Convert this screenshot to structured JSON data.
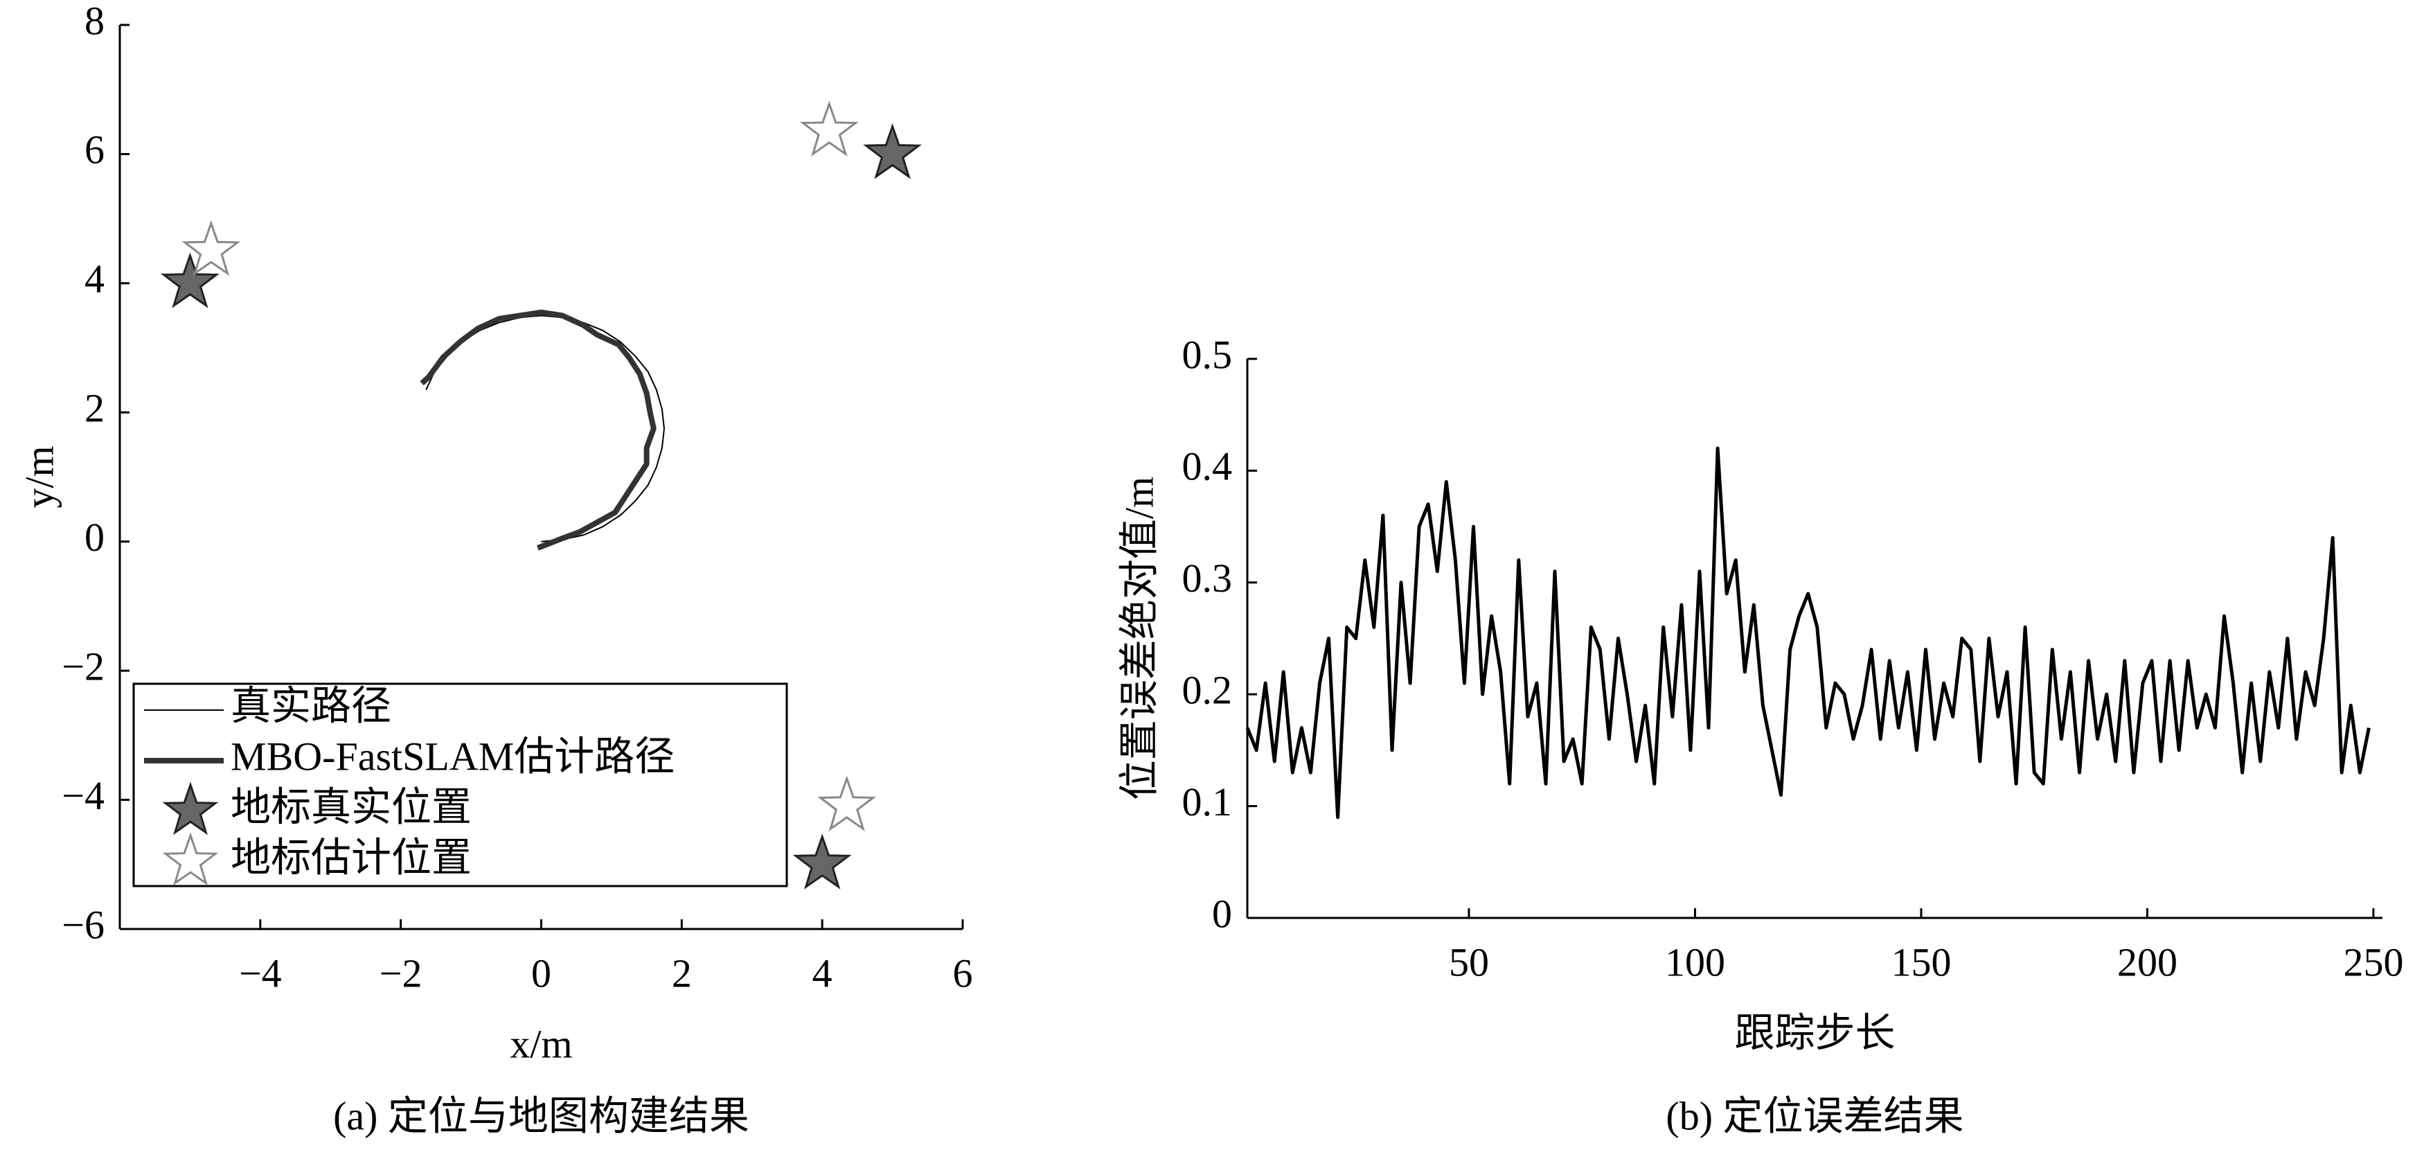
{
  "chart_data": [
    {
      "type": "line",
      "caption": "(a) 定位与地图构建结果",
      "xlabel": "x/m",
      "ylabel": "y/m",
      "xlim": [
        -6,
        6
      ],
      "ylim": [
        -6,
        8
      ],
      "xticks": [
        {
          "value": -4,
          "label": "−4"
        },
        {
          "value": -2,
          "label": "−2"
        },
        0,
        2,
        4,
        6
      ],
      "yticks": [
        {
          "value": -6,
          "label": "−6"
        },
        {
          "value": -4,
          "label": "−4"
        },
        {
          "value": -2,
          "label": "−2"
        },
        0,
        2,
        4,
        6,
        8
      ],
      "legend": "lower left",
      "series": [
        {
          "name": "真实路径",
          "color": "#000000",
          "linewidth": 2,
          "x": [
            0,
            0.3,
            0.6,
            0.875,
            1.13,
            1.34,
            1.52,
            1.64,
            1.72,
            1.75,
            1.72,
            1.64,
            1.52,
            1.34,
            1.13,
            0.875,
            0.6,
            0.3,
            0,
            -0.3,
            -0.6,
            -0.875,
            -1.13,
            -1.34,
            -1.52,
            -1.64
          ],
          "y": [
            0,
            0.03,
            0.1,
            0.23,
            0.41,
            0.63,
            0.875,
            1.15,
            1.45,
            1.75,
            2.05,
            2.35,
            2.63,
            2.87,
            3.09,
            3.27,
            3.39,
            3.47,
            3.5,
            3.47,
            3.39,
            3.27,
            3.09,
            2.87,
            2.63,
            2.35
          ]
        },
        {
          "name": "MBO-FastSLAM估计路径",
          "color": "#333333",
          "linewidth": 8,
          "x": [
            -0.05,
            0.3,
            0.55,
            0.8,
            1.05,
            1.2,
            1.35,
            1.5,
            1.5,
            1.6,
            1.55,
            1.5,
            1.4,
            1.25,
            1.1,
            0.8,
            0.6,
            0.3,
            0,
            -0.3,
            -0.6,
            -0.9,
            -1.15,
            -1.4,
            -1.6,
            -1.7
          ],
          "y": [
            -0.1,
            0.05,
            0.15,
            0.3,
            0.45,
            0.7,
            0.95,
            1.2,
            1.45,
            1.75,
            2,
            2.3,
            2.6,
            2.85,
            3.05,
            3.2,
            3.35,
            3.5,
            3.55,
            3.5,
            3.45,
            3.3,
            3.1,
            2.85,
            2.55,
            2.45
          ]
        },
        {
          "name": "地标真实位置",
          "color": "#666666",
          "marker": "star",
          "filled": true,
          "x": [
            -5,
            5,
            4
          ],
          "y": [
            4,
            6,
            -5
          ]
        },
        {
          "name": "地标估计位置",
          "color": "#888888",
          "marker": "star",
          "filled": false,
          "x": [
            -4.7,
            4.1,
            4.35
          ],
          "y": [
            4.5,
            6.35,
            -4.1
          ]
        }
      ]
    },
    {
      "type": "line",
      "caption": "(b) 定位误差结果",
      "xlabel": "跟踪步长",
      "ylabel": "位置误差绝对值/m",
      "xlim": [
        1,
        252
      ],
      "ylim": [
        0,
        0.5
      ],
      "xticks": [
        50,
        100,
        150,
        200,
        250
      ],
      "yticks": [
        0,
        0.1,
        0.2,
        0.3,
        0.4,
        0.5
      ],
      "color": "#000000",
      "x": [
        1,
        3,
        5,
        7,
        9,
        11,
        13,
        15,
        17,
        19,
        21,
        23,
        25,
        27,
        29,
        31,
        33,
        35,
        37,
        39,
        41,
        43,
        45,
        47,
        49,
        51,
        53,
        55,
        57,
        59,
        61,
        63,
        65,
        67,
        69,
        71,
        73,
        75,
        77,
        79,
        81,
        83,
        85,
        87,
        89,
        91,
        93,
        95,
        97,
        99,
        101,
        103,
        105,
        107,
        109,
        111,
        113,
        115,
        117,
        119,
        121,
        123,
        125,
        127,
        129,
        131,
        133,
        135,
        137,
        139,
        141,
        143,
        145,
        147,
        149,
        151,
        153,
        155,
        157,
        159,
        161,
        163,
        165,
        167,
        169,
        171,
        173,
        175,
        177,
        179,
        181,
        183,
        185,
        187,
        189,
        191,
        193,
        195,
        197,
        199,
        201,
        203,
        205,
        207,
        209,
        211,
        213,
        215,
        217,
        219,
        221,
        223,
        225,
        227,
        229,
        231,
        233,
        235,
        237,
        239,
        241,
        243,
        245,
        247,
        249
      ],
      "values": [
        0.17,
        0.15,
        0.21,
        0.14,
        0.22,
        0.13,
        0.17,
        0.13,
        0.21,
        0.25,
        0.09,
        0.26,
        0.25,
        0.32,
        0.26,
        0.36,
        0.15,
        0.3,
        0.21,
        0.35,
        0.37,
        0.31,
        0.39,
        0.32,
        0.21,
        0.35,
        0.2,
        0.27,
        0.22,
        0.12,
        0.32,
        0.18,
        0.21,
        0.12,
        0.31,
        0.14,
        0.16,
        0.12,
        0.26,
        0.24,
        0.16,
        0.25,
        0.2,
        0.14,
        0.19,
        0.12,
        0.26,
        0.18,
        0.28,
        0.15,
        0.31,
        0.17,
        0.42,
        0.29,
        0.32,
        0.22,
        0.28,
        0.19,
        0.15,
        0.11,
        0.24,
        0.27,
        0.29,
        0.26,
        0.17,
        0.21,
        0.2,
        0.16,
        0.19,
        0.24,
        0.16,
        0.23,
        0.17,
        0.22,
        0.15,
        0.24,
        0.16,
        0.21,
        0.18,
        0.25,
        0.24,
        0.14,
        0.25,
        0.18,
        0.22,
        0.12,
        0.26,
        0.13,
        0.12,
        0.24,
        0.16,
        0.22,
        0.13,
        0.23,
        0.16,
        0.2,
        0.14,
        0.23,
        0.13,
        0.21,
        0.23,
        0.14,
        0.23,
        0.15,
        0.23,
        0.17,
        0.2,
        0.17,
        0.27,
        0.21,
        0.13,
        0.21,
        0.14,
        0.22,
        0.17,
        0.25,
        0.16,
        0.22,
        0.19,
        0.25,
        0.34,
        0.13,
        0.19,
        0.13,
        0.17
      ]
    }
  ]
}
